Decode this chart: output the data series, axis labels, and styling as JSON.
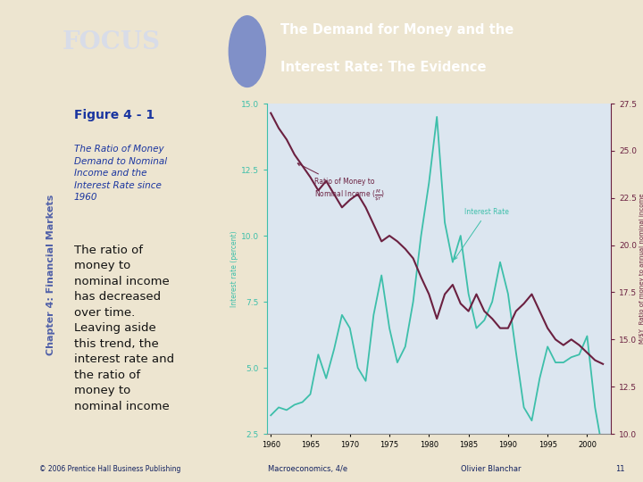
{
  "title_line1": "The Demand for Money and the",
  "title_line2": "Interest Rate: The Evidence",
  "chapter_label": "Chapter 4: Financial Markets",
  "figure_label": "Figure 4 - 1",
  "figure_subtitle_italic": "The Ratio of Money\nDemand to Nominal\nIncome and the\nInterest Rate since\n1960",
  "figure_text": "The ratio of\nmoney to\nnominal income\nhas decreased\nover time.\nLeaving aside\nthis trend, the\ninterest rate and\nthe ratio of\nmoney to\nnominal income",
  "footer_left": "© 2006 Prentice Hall Business Publishing",
  "footer_mid": "Macroeconomics, 4/e",
  "footer_right": "Olivier Blanchar",
  "footer_page": "11",
  "bg_header_light": "#b8c4dc",
  "bg_header_blue": "#7b8fc7",
  "bg_header_dark": "#3a4a9a",
  "bg_slide": "#ede5d0",
  "bg_left_bar": "#c8a85a",
  "bg_chart": "#dce6f0",
  "header_text_color": "#ffffff",
  "chart_ylabel_left": "Interest rate (percent)",
  "chart_ylabel_right": "M/$Y  Ratio of money to annual nominal income",
  "left_ylim": [
    2.5,
    15.0
  ],
  "right_ylim": [
    10.0,
    27.5
  ],
  "left_yticks": [
    2.5,
    5.0,
    7.5,
    10.0,
    12.5,
    15.0
  ],
  "right_yticks": [
    10.0,
    12.5,
    15.0,
    17.5,
    20.0,
    22.5,
    25.0,
    27.5
  ],
  "years": [
    1960,
    1961,
    1962,
    1963,
    1964,
    1965,
    1966,
    1967,
    1968,
    1969,
    1970,
    1971,
    1972,
    1973,
    1974,
    1975,
    1976,
    1977,
    1978,
    1979,
    1980,
    1981,
    1982,
    1983,
    1984,
    1985,
    1986,
    1987,
    1988,
    1989,
    1990,
    1991,
    1992,
    1993,
    1994,
    1995,
    1996,
    1997,
    1998,
    1999,
    2000,
    2001,
    2002
  ],
  "interest_rate": [
    3.2,
    3.5,
    3.4,
    3.6,
    3.7,
    4.0,
    5.5,
    4.6,
    5.7,
    7.0,
    6.5,
    5.0,
    4.5,
    7.0,
    8.5,
    6.5,
    5.2,
    5.8,
    7.5,
    10.0,
    12.0,
    14.5,
    10.5,
    9.0,
    10.0,
    7.8,
    6.5,
    6.8,
    7.5,
    9.0,
    7.8,
    5.6,
    3.5,
    3.0,
    4.6,
    5.8,
    5.2,
    5.2,
    5.4,
    5.5,
    6.2,
    3.5,
    1.8
  ],
  "money_ratio_right": [
    27.0,
    26.2,
    25.6,
    24.8,
    24.2,
    23.6,
    22.9,
    23.4,
    22.7,
    22.0,
    22.4,
    22.7,
    22.0,
    21.1,
    20.2,
    20.5,
    20.2,
    19.8,
    19.3,
    18.3,
    17.4,
    16.1,
    17.4,
    17.9,
    16.9,
    16.5,
    17.4,
    16.5,
    16.1,
    15.6,
    15.6,
    16.5,
    16.9,
    17.4,
    16.5,
    15.6,
    15.0,
    14.7,
    15.0,
    14.7,
    14.3,
    13.9,
    13.7
  ],
  "interest_color": "#3dbfaa",
  "money_color": "#6b2040",
  "footer_bg": "#c5cce0"
}
